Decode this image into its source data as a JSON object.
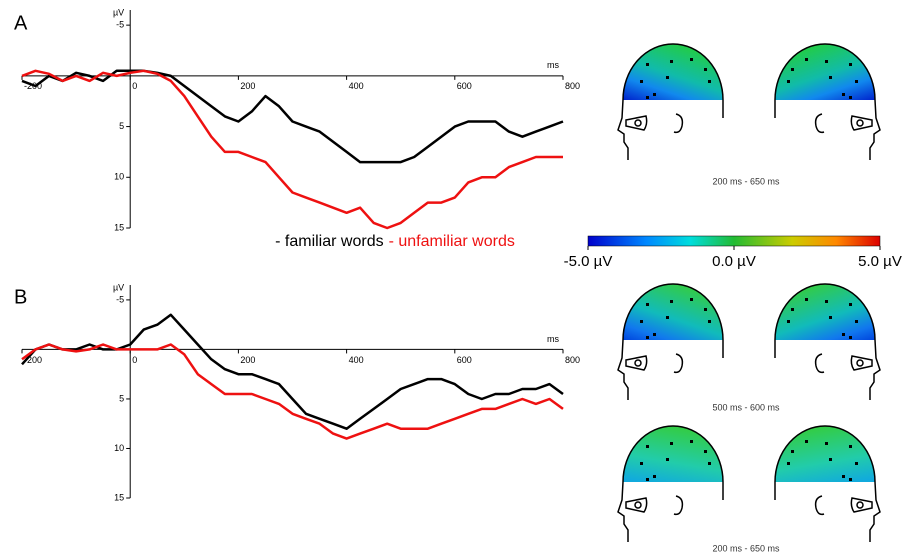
{
  "chart_data": [
    {
      "type": "line",
      "panel": "A",
      "ylabel": "µV",
      "xlabel": "ms",
      "xlim": [
        -200,
        800
      ],
      "xticks": [
        -200,
        0,
        200,
        400,
        600,
        800
      ],
      "ylim": [
        15,
        -6
      ],
      "yticks": [
        -5,
        5,
        10,
        15
      ],
      "x": [
        -200,
        -175,
        -150,
        -125,
        -100,
        -75,
        -50,
        -25,
        0,
        25,
        50,
        75,
        100,
        125,
        150,
        175,
        200,
        225,
        250,
        275,
        300,
        325,
        350,
        375,
        400,
        425,
        450,
        475,
        500,
        525,
        550,
        575,
        600,
        625,
        650,
        675,
        700,
        725,
        750,
        775,
        800
      ],
      "series": [
        {
          "name": "- familiar words",
          "color": "#000000",
          "values": [
            0.5,
            1,
            0,
            0.5,
            -0.3,
            0,
            0.5,
            -0.5,
            -0.5,
            -0.5,
            -0.3,
            0,
            1,
            2,
            3,
            4,
            4.5,
            3.5,
            2,
            3,
            4.5,
            5,
            5.5,
            6.5,
            7.5,
            8.5,
            8.5,
            8.5,
            8.5,
            8,
            7,
            6,
            5,
            4.5,
            4.5,
            4.5,
            5.5,
            6,
            5.5,
            5,
            4.5
          ]
        },
        {
          "name": "- unfamiliar words",
          "color": "#ee1111",
          "values": [
            0,
            -0.5,
            -0.2,
            0.5,
            0,
            0.5,
            -0.3,
            0,
            -0.3,
            -0.5,
            -0.2,
            0.5,
            2,
            4,
            6,
            7.5,
            7.5,
            8,
            8.5,
            10,
            11.5,
            12,
            12.5,
            13,
            13.5,
            13,
            14.5,
            15,
            14.5,
            13.5,
            12.5,
            12.5,
            12,
            10.5,
            10,
            10,
            9,
            8.5,
            8,
            8,
            8
          ]
        }
      ]
    },
    {
      "type": "line",
      "panel": "B",
      "ylabel": "µV",
      "xlabel": "ms",
      "xlim": [
        -200,
        800
      ],
      "xticks": [
        -200,
        0,
        200,
        400,
        600,
        800
      ],
      "ylim": [
        15,
        -6
      ],
      "yticks": [
        -5,
        5,
        10,
        15
      ],
      "x": [
        -200,
        -175,
        -150,
        -125,
        -100,
        -75,
        -50,
        -25,
        0,
        25,
        50,
        75,
        100,
        125,
        150,
        175,
        200,
        225,
        250,
        275,
        300,
        325,
        350,
        375,
        400,
        425,
        450,
        475,
        500,
        525,
        550,
        575,
        600,
        625,
        650,
        675,
        700,
        725,
        750,
        775,
        800
      ],
      "series": [
        {
          "color": "#000000",
          "values": [
            1.5,
            0,
            -0.5,
            0,
            0,
            -0.5,
            0,
            0,
            -0.5,
            -2,
            -2.5,
            -3.5,
            -2,
            -0.5,
            1,
            2,
            2.5,
            2.5,
            3,
            3.5,
            5,
            6.5,
            7,
            7.5,
            8,
            7,
            6,
            5,
            4,
            3.5,
            3,
            3,
            3.5,
            4.5,
            5,
            4.5,
            4.5,
            4,
            4,
            3.5,
            4.5
          ]
        },
        {
          "color": "#ee1111",
          "values": [
            1,
            0,
            -0.5,
            0,
            0.2,
            0,
            -0.5,
            0,
            0,
            0,
            0,
            -0.5,
            0.5,
            2.5,
            3.5,
            4.5,
            4.5,
            4.5,
            5,
            5.5,
            6.5,
            7,
            7.5,
            8.5,
            9,
            8.5,
            8,
            7.5,
            8,
            8,
            8,
            7.5,
            7,
            6.5,
            6,
            6,
            5.5,
            5,
            5.5,
            5,
            6
          ]
        }
      ]
    }
  ],
  "colorbar": {
    "lim": [
      -5,
      5
    ],
    "ticks": [
      {
        "value": -5,
        "label": "-5.0 µV"
      },
      {
        "value": 0,
        "label": "0.0 µV"
      },
      {
        "value": 5,
        "label": "5.0 µV"
      }
    ]
  },
  "topomaps": {
    "captions": [
      "200 ms - 650 ms",
      "500 ms - 600 ms",
      "200 ms - 650 ms"
    ]
  }
}
